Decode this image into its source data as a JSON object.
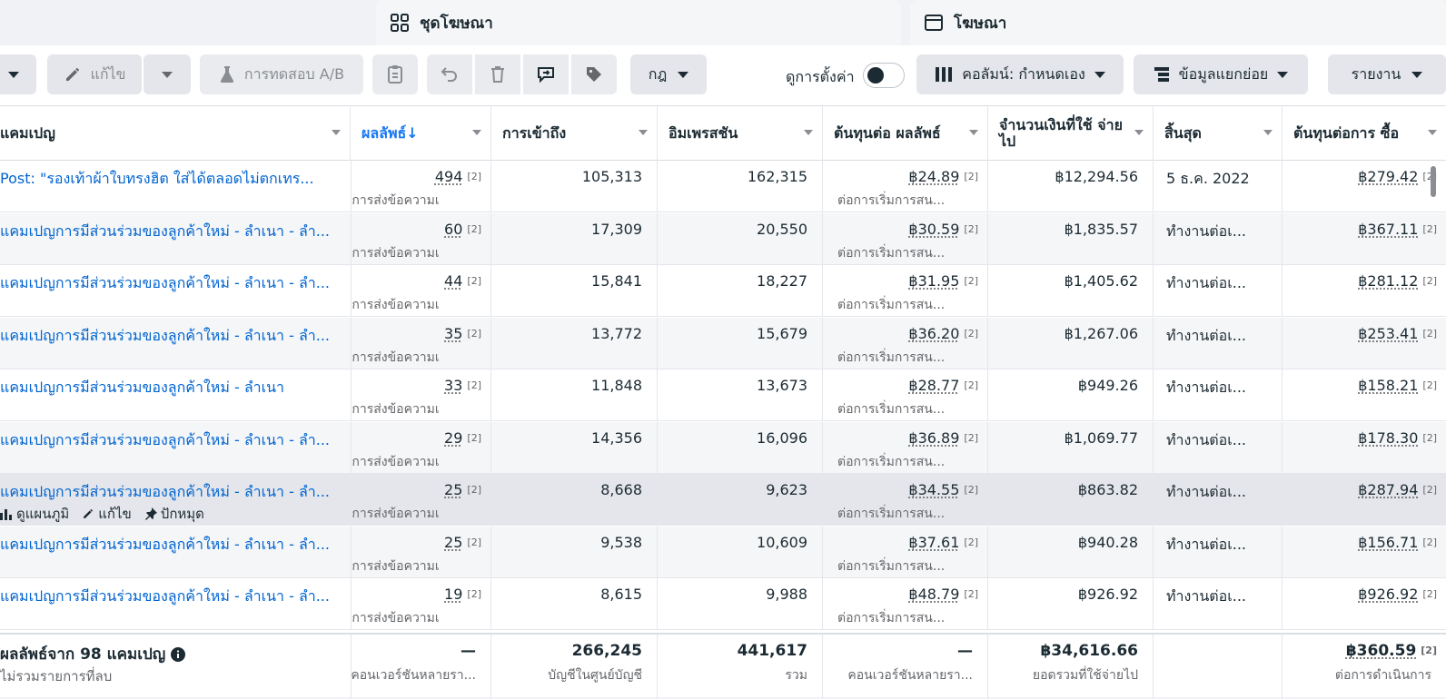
{
  "tabs": [
    {
      "label": "ชุดโฆษณา",
      "icon": "grid-icon"
    },
    {
      "label": "โฆษณา",
      "icon": "ad-frame-icon"
    }
  ],
  "toolbar": {
    "edit_label": "แก้ไข",
    "ab_test_label": "การทดสอบ A/B",
    "rules_label": "กฎ",
    "view_settings_label": "ดูการตั้งค่า",
    "columns_label": "คอลัมน์: กำหนดเอง",
    "breakdown_label": "ข้อมูลแยกย่อย",
    "reports_label": "รายงาน"
  },
  "columns": [
    {
      "key": "campaign",
      "label": "แคมเปญ"
    },
    {
      "key": "results",
      "label": "ผลลัพธ์↓"
    },
    {
      "key": "reach",
      "label": "การเข้าถึง"
    },
    {
      "key": "impressions",
      "label": "อิมเพรสชัน"
    },
    {
      "key": "cpr",
      "label": "ต้นทุนต่อ ผลลัพธ์"
    },
    {
      "key": "spent",
      "label": "จำนวนเงินที่ใช้ จ่ายไป"
    },
    {
      "key": "ends",
      "label": "สิ้นสุด"
    },
    {
      "key": "cpp",
      "label": "ต้นทุนต่อการ ซื้อ"
    }
  ],
  "result_sub": "การส่งข้อความเ...",
  "cpr_sub": "ต่อการเริ่มการสน...",
  "ref_mark": "[2]",
  "rows": [
    {
      "name": "Post: \"รองเท้าผ้าใบทรงฮิต ใส่ได้ตลอดไม่ตกเทร...",
      "results": "494",
      "reach": "105,313",
      "impressions": "162,315",
      "cpr": "฿24.89",
      "spent": "฿12,294.56",
      "ends": "5 ธ.ค. 2022",
      "cpp": "฿279.42"
    },
    {
      "name": "แคมเปญการมีส่วนร่วมของลูกค้าใหม่ - ลำเนา - ลำ...",
      "results": "60",
      "reach": "17,309",
      "impressions": "20,550",
      "cpr": "฿30.59",
      "spent": "฿1,835.57",
      "ends": "ทำงานต่อเ...",
      "cpp": "฿367.11"
    },
    {
      "name": "แคมเปญการมีส่วนร่วมของลูกค้าใหม่ - ลำเนา - ลำ...",
      "results": "44",
      "reach": "15,841",
      "impressions": "18,227",
      "cpr": "฿31.95",
      "spent": "฿1,405.62",
      "ends": "ทำงานต่อเ...",
      "cpp": "฿281.12"
    },
    {
      "name": "แคมเปญการมีส่วนร่วมของลูกค้าใหม่ - ลำเนา - ลำ...",
      "results": "35",
      "reach": "13,772",
      "impressions": "15,679",
      "cpr": "฿36.20",
      "spent": "฿1,267.06",
      "ends": "ทำงานต่อเ...",
      "cpp": "฿253.41"
    },
    {
      "name": "แคมเปญการมีส่วนร่วมของลูกค้าใหม่ - ลำเนา",
      "results": "33",
      "reach": "11,848",
      "impressions": "13,673",
      "cpr": "฿28.77",
      "spent": "฿949.26",
      "ends": "ทำงานต่อเ...",
      "cpp": "฿158.21"
    },
    {
      "name": "แคมเปญการมีส่วนร่วมของลูกค้าใหม่ - ลำเนา - ลำ...",
      "results": "29",
      "reach": "14,356",
      "impressions": "16,096",
      "cpr": "฿36.89",
      "spent": "฿1,069.77",
      "ends": "ทำงานต่อเ...",
      "cpp": "฿178.30"
    },
    {
      "name": "แคมเปญการมีส่วนร่วมของลูกค้าใหม่ - ลำเนา - ลำ...",
      "results": "25",
      "reach": "8,668",
      "impressions": "9,623",
      "cpr": "฿34.55",
      "spent": "฿863.82",
      "ends": "ทำงานต่อเ...",
      "cpp": "฿287.94"
    },
    {
      "name": "แคมเปญการมีส่วนร่วมของลูกค้าใหม่ - ลำเนา - ลำ...",
      "results": "25",
      "reach": "9,538",
      "impressions": "10,609",
      "cpr": "฿37.61",
      "spent": "฿940.28",
      "ends": "ทำงานต่อเ...",
      "cpp": "฿156.71"
    },
    {
      "name": "แคมเปญการมีส่วนร่วมของลูกค้าใหม่ - ลำเนา - ลำ...",
      "results": "19",
      "reach": "8,615",
      "impressions": "9,988",
      "cpr": "฿48.79",
      "spent": "฿926.92",
      "ends": "ทำงานต่อเ...",
      "cpp": "฿926.92"
    }
  ],
  "row_actions": {
    "view_charts": "ดูแผนภูมิ",
    "edit": "แก้ไข",
    "pin": "ปักหมุด"
  },
  "footer": {
    "title": "ผลลัพธ์จาก 98 แคมเปญ",
    "subtitle": "ไม่รวมรายการที่ลบ",
    "results_value": "—",
    "results_sub": "คอนเวอร์ชันหลายรา...",
    "reach_value": "266,245",
    "reach_sub": "บัญชีในศูนย์บัญชี",
    "impressions_value": "441,617",
    "impressions_sub": "รวม",
    "cpr_value": "—",
    "cpr_sub": "คอนเวอร์ชันหลายรา...",
    "spent_value": "฿34,616.66",
    "spent_sub": "ยอดรวมที่ใช้จ่ายไป",
    "cpp_value": "฿360.59",
    "cpp_sub": "ต่อการดำเนินการ"
  },
  "colors": {
    "link": "#0064d1",
    "primary": "#1877f2"
  }
}
